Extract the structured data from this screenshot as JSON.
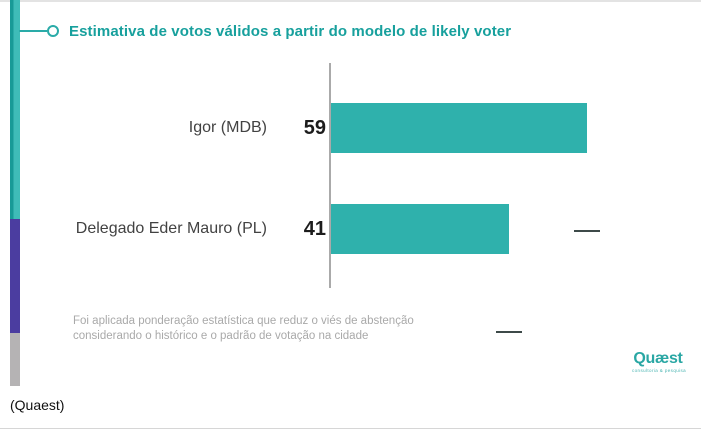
{
  "figure": {
    "caption": "(Quaest)"
  },
  "chart": {
    "title": "Estimativa de votos válidos a partir do modelo de likely voter",
    "footnote": [
      "Foi aplicada ponderação estatística que reduz o viés de abstenção",
      "considerando o histórico e o padrão de votação na cidade"
    ],
    "logo": {
      "wordmark": "Quæst",
      "tagline": "consultoria & pesquisa"
    }
  },
  "chart_data": {
    "type": "bar",
    "orientation": "horizontal",
    "title": "Estimativa de votos válidos a partir do modelo de likely voter",
    "categories": [
      "Igor (MDB)",
      "Delegado Eder Mauro (PL)"
    ],
    "values": [
      59,
      41
    ],
    "value_labels": [
      "59",
      "41"
    ],
    "xlim": [
      0,
      85
    ],
    "grid": false,
    "legend": false,
    "error_bar_margin": 3,
    "bar_color": "#2fb1ac"
  },
  "colors": {
    "accent_teal": "#2fb1ac",
    "title_teal": "#17a09d",
    "stripe_purple": "#4b3da0",
    "stripe_gray": "#b5b3b4",
    "axis_gray": "#aaaaaa",
    "footnote_gray": "#a9a9a9"
  }
}
